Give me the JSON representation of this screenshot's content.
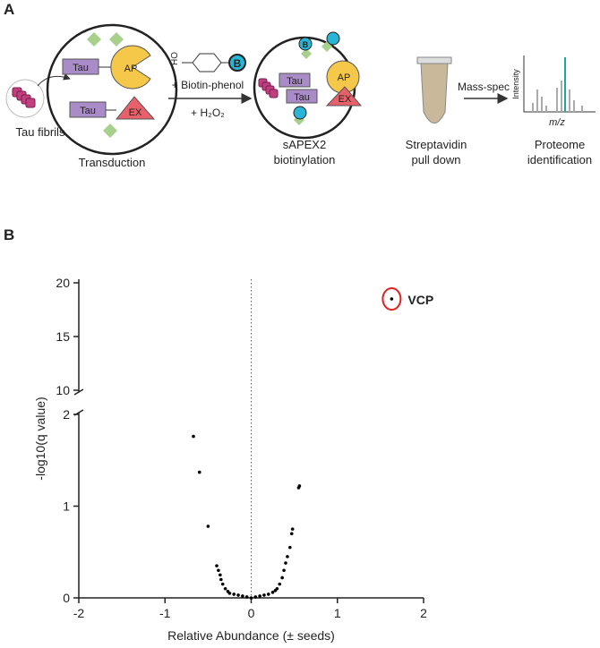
{
  "panel_a": {
    "label": "A",
    "fibrils": "Tau fibrils",
    "step1": "Transduction",
    "tau1": "Tau",
    "ap1": "AP",
    "tau2": "Tau",
    "ex1": "EX",
    "reagent_ho": "HO",
    "reagent_b": "B",
    "reagent1": "+ Biotin-phenol",
    "reagent2": "+ H₂O₂",
    "tau3": "Tau",
    "ap2": "AP",
    "tau4": "Tau",
    "ex2": "EX",
    "biotin_b": "B",
    "step2": [
      "sAPEX2",
      "biotinylation"
    ],
    "step3": [
      "Streptavidin",
      "pull down"
    ],
    "mass_spec": "Mass-spec",
    "intensity": "Intensity",
    "mz": "m/z",
    "step4": [
      "Proteome",
      "identification"
    ]
  },
  "chart_data": {
    "type": "scatter",
    "label": "B",
    "x_label": "Relative Abundance (± seeds)",
    "y_label": "-log10(q value)",
    "x": [
      -0.67,
      -0.6,
      -0.5,
      -0.4,
      -0.38,
      -0.36,
      -0.35,
      -0.33,
      -0.3,
      -0.27,
      -0.25,
      -0.2,
      -0.15,
      -0.1,
      -0.05,
      0,
      0.05,
      0.1,
      0.15,
      0.2,
      0.25,
      0.28,
      0.3,
      0.33,
      0.36,
      0.38,
      0.4,
      0.42,
      0.45,
      0.47,
      0.48,
      0.55,
      0.56,
      1.63
    ],
    "values": [
      1.76,
      1.37,
      0.78,
      0.35,
      0.3,
      0.25,
      0.2,
      0.15,
      0.1,
      0.07,
      0.05,
      0.04,
      0.03,
      0.02,
      0.01,
      0,
      0.01,
      0.02,
      0.03,
      0.04,
      0.06,
      0.08,
      0.1,
      0.15,
      0.22,
      0.3,
      0.38,
      0.45,
      0.55,
      0.7,
      0.75,
      1.2,
      1.22,
      18.5
    ],
    "color": "#000000",
    "xlim": [
      -2,
      2
    ],
    "xticks": [
      -2,
      -1,
      0,
      1,
      2
    ],
    "y_segments": [
      {
        "ylim": [
          0,
          2
        ],
        "yticks": [
          0,
          1,
          2
        ]
      },
      {
        "ylim": [
          10,
          20
        ],
        "yticks": [
          10,
          15,
          20
        ]
      }
    ],
    "reference_line_x": 0,
    "annotation": {
      "text": "VCP",
      "x": 1.63,
      "y": 18.5,
      "color": "#e02020"
    }
  }
}
